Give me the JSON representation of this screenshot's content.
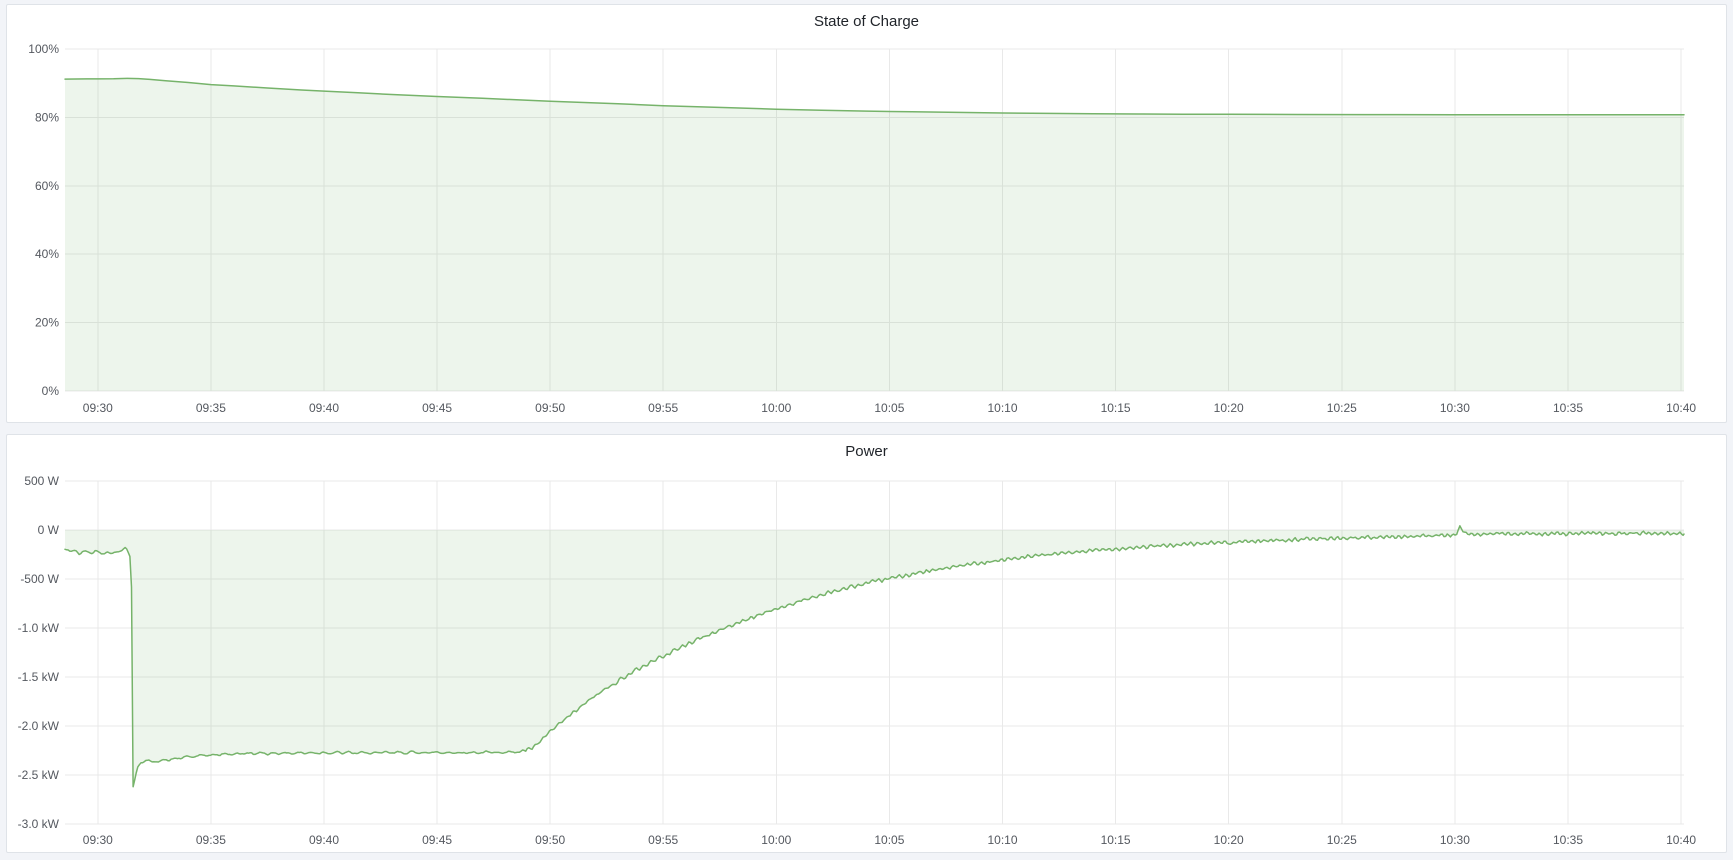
{
  "app": {
    "name": "energy-metrics-dashboard"
  },
  "theme": {
    "page_background": "#f2f4f8",
    "panel_background": "#ffffff",
    "panel_border": "#dfe3e8",
    "grid_color": "#e9e9e9",
    "tick_text_color": "#54585f",
    "title_text_color": "#1f2329",
    "series_line_color": "#76b36a",
    "series_fill_color": "rgba(118,179,105,0.13)"
  },
  "chart_data": [
    {
      "type": "area",
      "title": "State of Charge",
      "unit": "%",
      "legend": "hidden",
      "grid": "on",
      "ylim": [
        0,
        100
      ],
      "fill_to_value": 0,
      "y_ticks": [
        {
          "value": 100,
          "label": "100%"
        },
        {
          "value": 80,
          "label": "80%"
        },
        {
          "value": 60,
          "label": "60%"
        },
        {
          "value": 40,
          "label": "40%"
        },
        {
          "value": 20,
          "label": "20%"
        },
        {
          "value": 0,
          "label": "0%"
        }
      ],
      "x_tick_labels": [
        "09:30",
        "09:35",
        "09:40",
        "09:45",
        "09:50",
        "09:55",
        "10:00",
        "10:05",
        "10:10",
        "10:15",
        "10:20",
        "10:25",
        "10:30",
        "10:35",
        "10:40"
      ],
      "x_tick_minutes": [
        0,
        5,
        10,
        15,
        20,
        25,
        30,
        35,
        40,
        45,
        50,
        55,
        60,
        65,
        70
      ],
      "x_domain_minutes": [
        -1.45,
        70.13
      ],
      "points_time_min_percent": [
        [
          -1.45,
          91.2
        ],
        [
          -0.5,
          91.25
        ],
        [
          0,
          91.25
        ],
        [
          0.7,
          91.3
        ],
        [
          1.3,
          91.4
        ],
        [
          1.8,
          91.35
        ],
        [
          2.3,
          91.1
        ],
        [
          3,
          90.7
        ],
        [
          4,
          90.2
        ],
        [
          5,
          89.6
        ],
        [
          6,
          89.2
        ],
        [
          7.5,
          88.6
        ],
        [
          9,
          88.0
        ],
        [
          10,
          87.7
        ],
        [
          11.5,
          87.2
        ],
        [
          13,
          86.7
        ],
        [
          15,
          86.1
        ],
        [
          17,
          85.6
        ],
        [
          19,
          85.0
        ],
        [
          20,
          84.7
        ],
        [
          21.5,
          84.35
        ],
        [
          23,
          84.0
        ],
        [
          25,
          83.4
        ],
        [
          26.5,
          83.1
        ],
        [
          28,
          82.8
        ],
        [
          30,
          82.4
        ],
        [
          32,
          82.1
        ],
        [
          34,
          81.85
        ],
        [
          36,
          81.65
        ],
        [
          38,
          81.45
        ],
        [
          40,
          81.3
        ],
        [
          42,
          81.18
        ],
        [
          44,
          81.08
        ],
        [
          46,
          81.0
        ],
        [
          48,
          80.95
        ],
        [
          50,
          80.9
        ],
        [
          53,
          80.85
        ],
        [
          56,
          80.82
        ],
        [
          60,
          80.8
        ],
        [
          64,
          80.78
        ],
        [
          68,
          80.76
        ],
        [
          70.13,
          80.75
        ]
      ]
    },
    {
      "type": "area",
      "title": "Power",
      "unit": "W",
      "legend": "hidden",
      "grid": "on",
      "ylim": [
        -3000,
        500
      ],
      "fill_to_value": 0,
      "y_ticks": [
        {
          "value": 500,
          "label": "500 W"
        },
        {
          "value": 0,
          "label": "0 W"
        },
        {
          "value": -500,
          "label": "-500 W"
        },
        {
          "value": -1000,
          "label": "-1.0 kW"
        },
        {
          "value": -1500,
          "label": "-1.5 kW"
        },
        {
          "value": -2000,
          "label": "-2.0 kW"
        },
        {
          "value": -2500,
          "label": "-2.5 kW"
        },
        {
          "value": -3000,
          "label": "-3.0 kW"
        }
      ],
      "x_tick_labels": [
        "09:30",
        "09:35",
        "09:40",
        "09:45",
        "09:50",
        "09:55",
        "10:00",
        "10:05",
        "10:10",
        "10:15",
        "10:20",
        "10:25",
        "10:30",
        "10:35",
        "10:40"
      ],
      "x_tick_minutes": [
        0,
        5,
        10,
        15,
        20,
        25,
        30,
        35,
        40,
        45,
        50,
        55,
        60,
        65,
        70
      ],
      "x_domain_minutes": [
        -1.45,
        70.13
      ],
      "anchor_points_time_min_watts": [
        [
          -1.45,
          -190
        ],
        [
          -1.2,
          -225
        ],
        [
          -1.0,
          -205
        ],
        [
          -0.8,
          -245
        ],
        [
          -0.55,
          -215
        ],
        [
          -0.3,
          -235
        ],
        [
          -0.1,
          -210
        ],
        [
          0.15,
          -240
        ],
        [
          0.4,
          -220
        ],
        [
          0.65,
          -245
        ],
        [
          0.9,
          -215
        ],
        [
          1.1,
          -195
        ],
        [
          1.25,
          -185
        ],
        [
          1.42,
          -265
        ],
        [
          1.48,
          -290
        ],
        [
          1.56,
          -2620
        ],
        [
          1.62,
          -2560
        ],
        [
          1.75,
          -2430
        ],
        [
          1.9,
          -2370
        ],
        [
          2.1,
          -2350
        ],
        [
          2.4,
          -2370
        ],
        [
          2.8,
          -2350
        ],
        [
          3.2,
          -2345
        ],
        [
          3.8,
          -2320
        ],
        [
          4.5,
          -2305
        ],
        [
          5.5,
          -2290
        ],
        [
          6.5,
          -2280
        ],
        [
          8,
          -2278
        ],
        [
          10,
          -2272
        ],
        [
          12,
          -2275
        ],
        [
          14,
          -2270
        ],
        [
          16,
          -2272
        ],
        [
          18,
          -2268
        ],
        [
          18.8,
          -2262
        ],
        [
          19.2,
          -2230
        ],
        [
          19.6,
          -2150
        ],
        [
          20,
          -2060
        ],
        [
          20.5,
          -1960
        ],
        [
          21,
          -1870
        ],
        [
          21.6,
          -1760
        ],
        [
          22.2,
          -1660
        ],
        [
          23,
          -1540
        ],
        [
          23.8,
          -1430
        ],
        [
          24.6,
          -1330
        ],
        [
          25.4,
          -1240
        ],
        [
          26.2,
          -1150
        ],
        [
          27,
          -1070
        ],
        [
          28,
          -975
        ],
        [
          29,
          -885
        ],
        [
          30,
          -805
        ],
        [
          31,
          -730
        ],
        [
          32,
          -660
        ],
        [
          33,
          -600
        ],
        [
          34,
          -545
        ],
        [
          35,
          -495
        ],
        [
          36,
          -450
        ],
        [
          37,
          -410
        ],
        [
          38,
          -370
        ],
        [
          39,
          -335
        ],
        [
          40,
          -305
        ],
        [
          41,
          -278
        ],
        [
          42,
          -252
        ],
        [
          43,
          -230
        ],
        [
          44,
          -210
        ],
        [
          45,
          -192
        ],
        [
          46,
          -176
        ],
        [
          47,
          -162
        ],
        [
          48,
          -148
        ],
        [
          49,
          -136
        ],
        [
          50,
          -125
        ],
        [
          51,
          -115
        ],
        [
          52,
          -106
        ],
        [
          53,
          -98
        ],
        [
          54,
          -90
        ],
        [
          55,
          -84
        ],
        [
          56,
          -78
        ],
        [
          57,
          -72
        ],
        [
          58,
          -66
        ],
        [
          59,
          -60
        ],
        [
          60,
          -55
        ],
        [
          60.1,
          -30
        ],
        [
          60.24,
          42
        ],
        [
          60.38,
          -28
        ],
        [
          61,
          -42
        ],
        [
          62,
          -38
        ],
        [
          63,
          -42
        ],
        [
          64,
          -36
        ],
        [
          65,
          -40
        ],
        [
          66,
          -34
        ],
        [
          67,
          -38
        ],
        [
          68,
          -32
        ],
        [
          69,
          -36
        ],
        [
          70.13,
          -35
        ]
      ],
      "noise": {
        "seed": 42,
        "sample_step_min": 0.07,
        "segments": [
          {
            "from": -1.5,
            "to": 1.44,
            "amp": 15,
            "period": 0.6,
            "phase": 1.2
          },
          {
            "from": 1.75,
            "to": 18.9,
            "amp": 16,
            "period": 0.55,
            "phase": 0.4
          },
          {
            "from": 18.9,
            "to": 34,
            "amp": 24,
            "period": 0.34,
            "phase": 2.1
          },
          {
            "from": 34,
            "to": 50,
            "amp": 22,
            "period": 0.3,
            "phase": 0.9
          },
          {
            "from": 50,
            "to": 70.2,
            "amp": 22,
            "period": 0.27,
            "phase": 1.6
          }
        ]
      }
    }
  ]
}
